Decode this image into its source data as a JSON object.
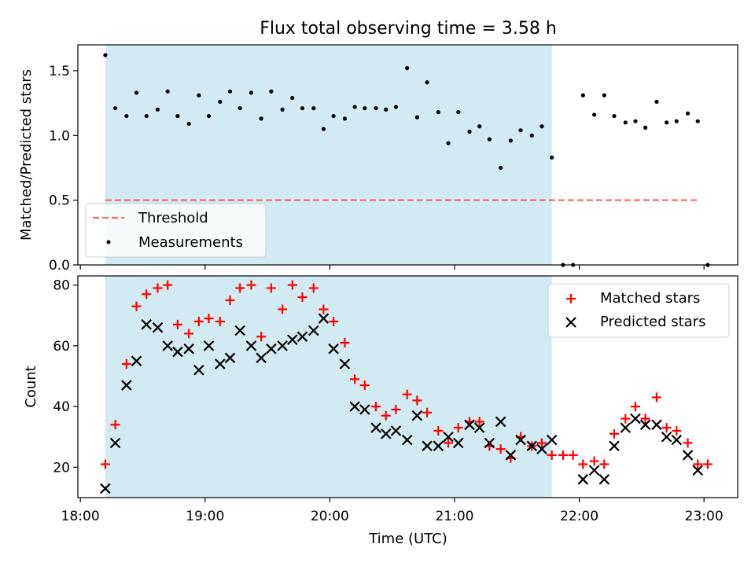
{
  "chart_data": {
    "type": "scatter",
    "title": "Flux total observing time = 3.58 h",
    "xlabel": "Time (UTC)",
    "x_ticks": [
      "18:00",
      "19:00",
      "20:00",
      "21:00",
      "22:00",
      "23:00"
    ],
    "x_range_hours": [
      17.98,
      23.27
    ],
    "shaded_interval": {
      "start": 18.2,
      "end": 21.78,
      "color": "#add8e6"
    },
    "panels": [
      {
        "ylabel": "Matched/Predicted stars",
        "ylim": [
          0,
          1.7
        ],
        "y_ticks": [
          "0.0",
          "0.5",
          "1.0",
          "1.5"
        ],
        "legend_position": "lower-left",
        "series": [
          {
            "name": "Threshold",
            "kind": "dashed-line",
            "color": "#ff6b6b",
            "x": [
              18.2,
              22.95
            ],
            "y": [
              0.5,
              0.5
            ]
          },
          {
            "name": "Measurements",
            "kind": "dot",
            "color": "#000000",
            "x": [
              18.2,
              18.28,
              18.37,
              18.45,
              18.53,
              18.62,
              18.7,
              18.78,
              18.87,
              18.95,
              19.03,
              19.12,
              19.2,
              19.28,
              19.37,
              19.45,
              19.53,
              19.62,
              19.7,
              19.78,
              19.87,
              19.95,
              20.03,
              20.12,
              20.2,
              20.28,
              20.37,
              20.45,
              20.53,
              20.62,
              20.7,
              20.78,
              20.87,
              20.95,
              21.03,
              21.12,
              21.2,
              21.28,
              21.37,
              21.45,
              21.53,
              21.62,
              21.7,
              21.78,
              21.87,
              21.95,
              22.03,
              22.12,
              22.2,
              22.28,
              22.37,
              22.45,
              22.53,
              22.62,
              22.7,
              22.78,
              22.87,
              22.95,
              23.03
            ],
            "y": [
              1.62,
              1.21,
              1.15,
              1.33,
              1.15,
              1.2,
              1.34,
              1.15,
              1.09,
              1.31,
              1.15,
              1.26,
              1.34,
              1.21,
              1.33,
              1.13,
              1.34,
              1.2,
              1.29,
              1.21,
              1.21,
              1.05,
              1.15,
              1.13,
              1.22,
              1.21,
              1.21,
              1.2,
              1.22,
              1.52,
              1.14,
              1.41,
              1.18,
              0.94,
              1.18,
              1.03,
              1.07,
              0.97,
              0.75,
              0.96,
              1.04,
              1.0,
              1.07,
              0.83,
              0.0,
              0.0,
              1.31,
              1.16,
              1.31,
              1.15,
              1.1,
              1.11,
              1.06,
              1.26,
              1.1,
              1.11,
              1.17,
              1.11,
              0.0
            ]
          }
        ]
      },
      {
        "ylabel": "Count",
        "ylim": [
          10,
          83
        ],
        "y_ticks": [
          "20",
          "40",
          "60",
          "80"
        ],
        "legend_position": "upper-right",
        "series": [
          {
            "name": "Matched stars",
            "kind": "plus",
            "color": "#ff0000",
            "x": [
              18.2,
              18.28,
              18.37,
              18.45,
              18.53,
              18.62,
              18.7,
              18.78,
              18.87,
              18.95,
              19.03,
              19.12,
              19.2,
              19.28,
              19.37,
              19.45,
              19.53,
              19.62,
              19.7,
              19.78,
              19.87,
              19.95,
              20.03,
              20.12,
              20.2,
              20.28,
              20.37,
              20.45,
              20.53,
              20.62,
              20.7,
              20.78,
              20.87,
              20.95,
              21.03,
              21.12,
              21.2,
              21.28,
              21.37,
              21.45,
              21.53,
              21.62,
              21.7,
              21.78,
              21.87,
              21.95,
              22.03,
              22.12,
              22.2,
              22.28,
              22.37,
              22.45,
              22.53,
              22.62,
              22.7,
              22.78,
              22.87,
              22.95,
              23.03
            ],
            "y": [
              21,
              34,
              54,
              73,
              77,
              79,
              80,
              67,
              64,
              68,
              69,
              68,
              75,
              79,
              80,
              63,
              79,
              72,
              80,
              76,
              79,
              72,
              68,
              61,
              49,
              47,
              40,
              37,
              39,
              44,
              42,
              38,
              32,
              28,
              33,
              35,
              35,
              27,
              26,
              23,
              30,
              27,
              28,
              24,
              24,
              24,
              21,
              22,
              21,
              31,
              36,
              40,
              36,
              43,
              33,
              32,
              28,
              21,
              21
            ]
          },
          {
            "name": "Predicted stars",
            "kind": "cross",
            "color": "#000000",
            "x": [
              18.2,
              18.28,
              18.37,
              18.45,
              18.53,
              18.62,
              18.7,
              18.78,
              18.87,
              18.95,
              19.03,
              19.12,
              19.2,
              19.28,
              19.37,
              19.45,
              19.53,
              19.62,
              19.7,
              19.78,
              19.87,
              19.95,
              20.03,
              20.12,
              20.2,
              20.28,
              20.37,
              20.45,
              20.53,
              20.62,
              20.7,
              20.78,
              20.87,
              20.95,
              21.03,
              21.12,
              21.2,
              21.28,
              21.37,
              21.45,
              21.53,
              21.62,
              21.7,
              21.78,
              22.03,
              22.12,
              22.2,
              22.28,
              22.37,
              22.45,
              22.53,
              22.62,
              22.7,
              22.78,
              22.87,
              22.95
            ],
            "y": [
              13,
              28,
              47,
              55,
              67,
              66,
              60,
              58,
              59,
              52,
              60,
              54,
              56,
              65,
              60,
              56,
              59,
              60,
              62,
              63,
              65,
              69,
              59,
              54,
              40,
              39,
              33,
              31,
              32,
              29,
              37,
              27,
              27,
              30,
              28,
              34,
              33,
              28,
              35,
              24,
              29,
              27,
              26,
              29,
              16,
              19,
              16,
              27,
              33,
              36,
              34,
              34,
              30,
              29,
              24,
              19
            ]
          }
        ]
      }
    ]
  }
}
